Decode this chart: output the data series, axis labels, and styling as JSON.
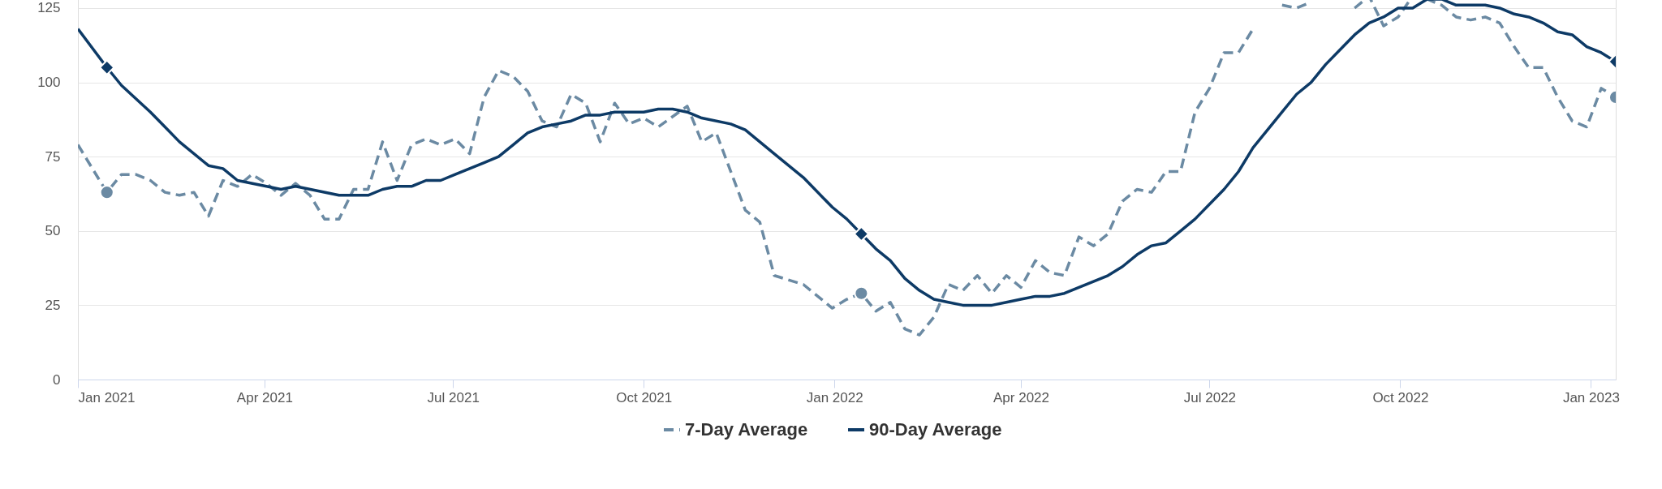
{
  "chart_data": {
    "type": "line",
    "xlim": [
      "2021-01-01",
      "2023-01-13"
    ],
    "xticks": [
      {
        "value": "2021-01-01",
        "label": "Jan 2021"
      },
      {
        "value": "2021-04-01",
        "label": "Apr 2021"
      },
      {
        "value": "2021-07-01",
        "label": "Jul 2021"
      },
      {
        "value": "2021-10-01",
        "label": "Oct 2021"
      },
      {
        "value": "2022-01-01",
        "label": "Jan 2022"
      },
      {
        "value": "2022-04-01",
        "label": "Apr 2022"
      },
      {
        "value": "2022-07-01",
        "label": "Jul 2022"
      },
      {
        "value": "2022-10-01",
        "label": "Oct 2022"
      },
      {
        "value": "2023-01-01",
        "label": "Jan 2023"
      }
    ],
    "ylim": [
      0,
      131
    ],
    "yticks": [
      0,
      25,
      50,
      75,
      100,
      125
    ],
    "grid": "y",
    "legend": "bottom",
    "series": [
      {
        "name": "7-Day Average",
        "color": "#6b8aa3",
        "line_style": "dashed",
        "marker": "none",
        "x": [
          "2021-01-01",
          "2021-01-15",
          "2021-01-22",
          "2021-01-29",
          "2021-02-05",
          "2021-02-12",
          "2021-02-19",
          "2021-02-26",
          "2021-03-05",
          "2021-03-12",
          "2021-03-19",
          "2021-03-26",
          "2021-04-02",
          "2021-04-09",
          "2021-04-16",
          "2021-04-23",
          "2021-04-30",
          "2021-05-07",
          "2021-05-14",
          "2021-05-21",
          "2021-05-28",
          "2021-06-04",
          "2021-06-11",
          "2021-06-18",
          "2021-06-25",
          "2021-07-02",
          "2021-07-09",
          "2021-07-16",
          "2021-07-23",
          "2021-07-30",
          "2021-08-06",
          "2021-08-13",
          "2021-08-20",
          "2021-08-27",
          "2021-09-03",
          "2021-09-10",
          "2021-09-17",
          "2021-09-24",
          "2021-10-01",
          "2021-10-08",
          "2021-10-22",
          "2021-10-29",
          "2021-11-05",
          "2021-11-19",
          "2021-11-26",
          "2021-12-03",
          "2021-12-17",
          "2021-12-31",
          "2022-01-07",
          "2022-01-14",
          "2022-01-21",
          "2022-01-28",
          "2022-02-04",
          "2022-02-11",
          "2022-02-18",
          "2022-02-25",
          "2022-03-04",
          "2022-03-11",
          "2022-03-18",
          "2022-03-25",
          "2022-04-01",
          "2022-04-08",
          "2022-04-15",
          "2022-04-22",
          "2022-04-29",
          "2022-05-06",
          "2022-05-13",
          "2022-05-20",
          "2022-05-27",
          "2022-06-03",
          "2022-06-10",
          "2022-06-17",
          "2022-06-24",
          "2022-07-01",
          "2022-07-08",
          "2022-07-15",
          "2022-07-22",
          "2022-07-29",
          "2022-08-05",
          "2022-08-12",
          "2022-08-19",
          "2022-08-26",
          "2022-09-02",
          "2022-09-09",
          "2022-09-16",
          "2022-09-23",
          "2022-09-30",
          "2022-10-07",
          "2022-10-14",
          "2022-10-21",
          "2022-10-28",
          "2022-11-04",
          "2022-11-11",
          "2022-11-18",
          "2022-11-25",
          "2022-12-02",
          "2022-12-09",
          "2022-12-16",
          "2022-12-23",
          "2022-12-30",
          "2023-01-06",
          "2023-01-13"
        ],
        "values": [
          79,
          63,
          69,
          69,
          67,
          63,
          62,
          63,
          55,
          67,
          65,
          69,
          66,
          62,
          66,
          62,
          54,
          54,
          64,
          64,
          80,
          67,
          79,
          81,
          79,
          81,
          76,
          95,
          104,
          102,
          97,
          87,
          85,
          96,
          93,
          80,
          93,
          86,
          88,
          85,
          92,
          80,
          83,
          57,
          53,
          35,
          32,
          24,
          27,
          29,
          23,
          26,
          17,
          15,
          21,
          32,
          30,
          35,
          29,
          35,
          31,
          40,
          36,
          35,
          48,
          45,
          49,
          60,
          64,
          63,
          70,
          70,
          90,
          98,
          110,
          110,
          118,
          null,
          126,
          125,
          127,
          null,
          null,
          125,
          129,
          119,
          122,
          129,
          128,
          126,
          122,
          121,
          122,
          120,
          112,
          105,
          105,
          95,
          87,
          85,
          98,
          95
        ]
      },
      {
        "name": "90-Day Average",
        "color": "#0d3a66",
        "line_style": "solid",
        "marker": "none",
        "x": [
          "2021-01-01",
          "2021-01-15",
          "2021-01-22",
          "2021-02-05",
          "2021-02-12",
          "2021-02-19",
          "2021-03-05",
          "2021-03-12",
          "2021-03-19",
          "2021-04-02",
          "2021-04-09",
          "2021-04-16",
          "2021-05-07",
          "2021-05-21",
          "2021-05-28",
          "2021-06-04",
          "2021-06-11",
          "2021-06-18",
          "2021-06-25",
          "2021-07-02",
          "2021-07-09",
          "2021-07-16",
          "2021-07-23",
          "2021-07-30",
          "2021-08-06",
          "2021-08-13",
          "2021-08-20",
          "2021-08-27",
          "2021-09-03",
          "2021-09-10",
          "2021-09-17",
          "2021-09-24",
          "2021-10-01",
          "2021-10-08",
          "2021-10-15",
          "2021-10-22",
          "2021-10-29",
          "2021-11-12",
          "2021-11-19",
          "2021-12-03",
          "2021-12-17",
          "2021-12-31",
          "2022-01-07",
          "2022-01-14",
          "2022-01-21",
          "2022-01-28",
          "2022-02-04",
          "2022-02-11",
          "2022-02-18",
          "2022-02-25",
          "2022-03-04",
          "2022-03-18",
          "2022-03-25",
          "2022-04-01",
          "2022-04-08",
          "2022-04-15",
          "2022-04-22",
          "2022-04-29",
          "2022-05-13",
          "2022-05-20",
          "2022-05-27",
          "2022-06-03",
          "2022-06-10",
          "2022-06-17",
          "2022-06-24",
          "2022-07-08",
          "2022-07-15",
          "2022-07-22",
          "2022-07-29",
          "2022-08-05",
          "2022-08-12",
          "2022-08-19",
          "2022-08-26",
          "2022-09-02",
          "2022-09-09",
          "2022-09-16",
          "2022-09-23",
          "2022-09-30",
          "2022-10-07",
          "2022-10-14",
          "2022-10-21",
          "2022-10-28",
          "2022-11-04",
          "2022-11-11",
          "2022-11-18",
          "2022-11-25",
          "2022-12-02",
          "2022-12-09",
          "2022-12-16",
          "2022-12-23",
          "2022-12-30",
          "2023-01-06",
          "2023-01-13"
        ],
        "values": [
          118,
          105,
          99,
          90,
          85,
          80,
          72,
          71,
          67,
          65,
          64,
          65,
          62,
          62,
          64,
          65,
          65,
          67,
          67,
          69,
          71,
          73,
          75,
          79,
          83,
          85,
          86,
          87,
          89,
          89,
          90,
          90,
          90,
          91,
          91,
          90,
          88,
          86,
          84,
          76,
          68,
          58,
          54,
          49,
          44,
          40,
          34,
          30,
          27,
          26,
          25,
          25,
          26,
          27,
          28,
          28,
          29,
          31,
          35,
          38,
          42,
          45,
          46,
          50,
          54,
          64,
          70,
          78,
          84,
          90,
          96,
          100,
          106,
          111,
          116,
          120,
          122,
          125,
          125,
          128,
          128,
          126,
          126,
          126,
          125,
          123,
          122,
          120,
          117,
          116,
          112,
          110,
          107
        ]
      },
      {
        "type": "scatter",
        "color": "#6b8aa3",
        "marker": "circle",
        "x": [
          "2021-01-15",
          "2022-01-14",
          "2023-01-13"
        ],
        "values": [
          63,
          29,
          95
        ]
      },
      {
        "type": "scatter",
        "color": "#0d3a66",
        "marker": "diamond",
        "x": [
          "2021-01-15",
          "2022-01-14",
          "2023-01-13"
        ],
        "values": [
          105,
          49,
          107
        ]
      }
    ]
  }
}
